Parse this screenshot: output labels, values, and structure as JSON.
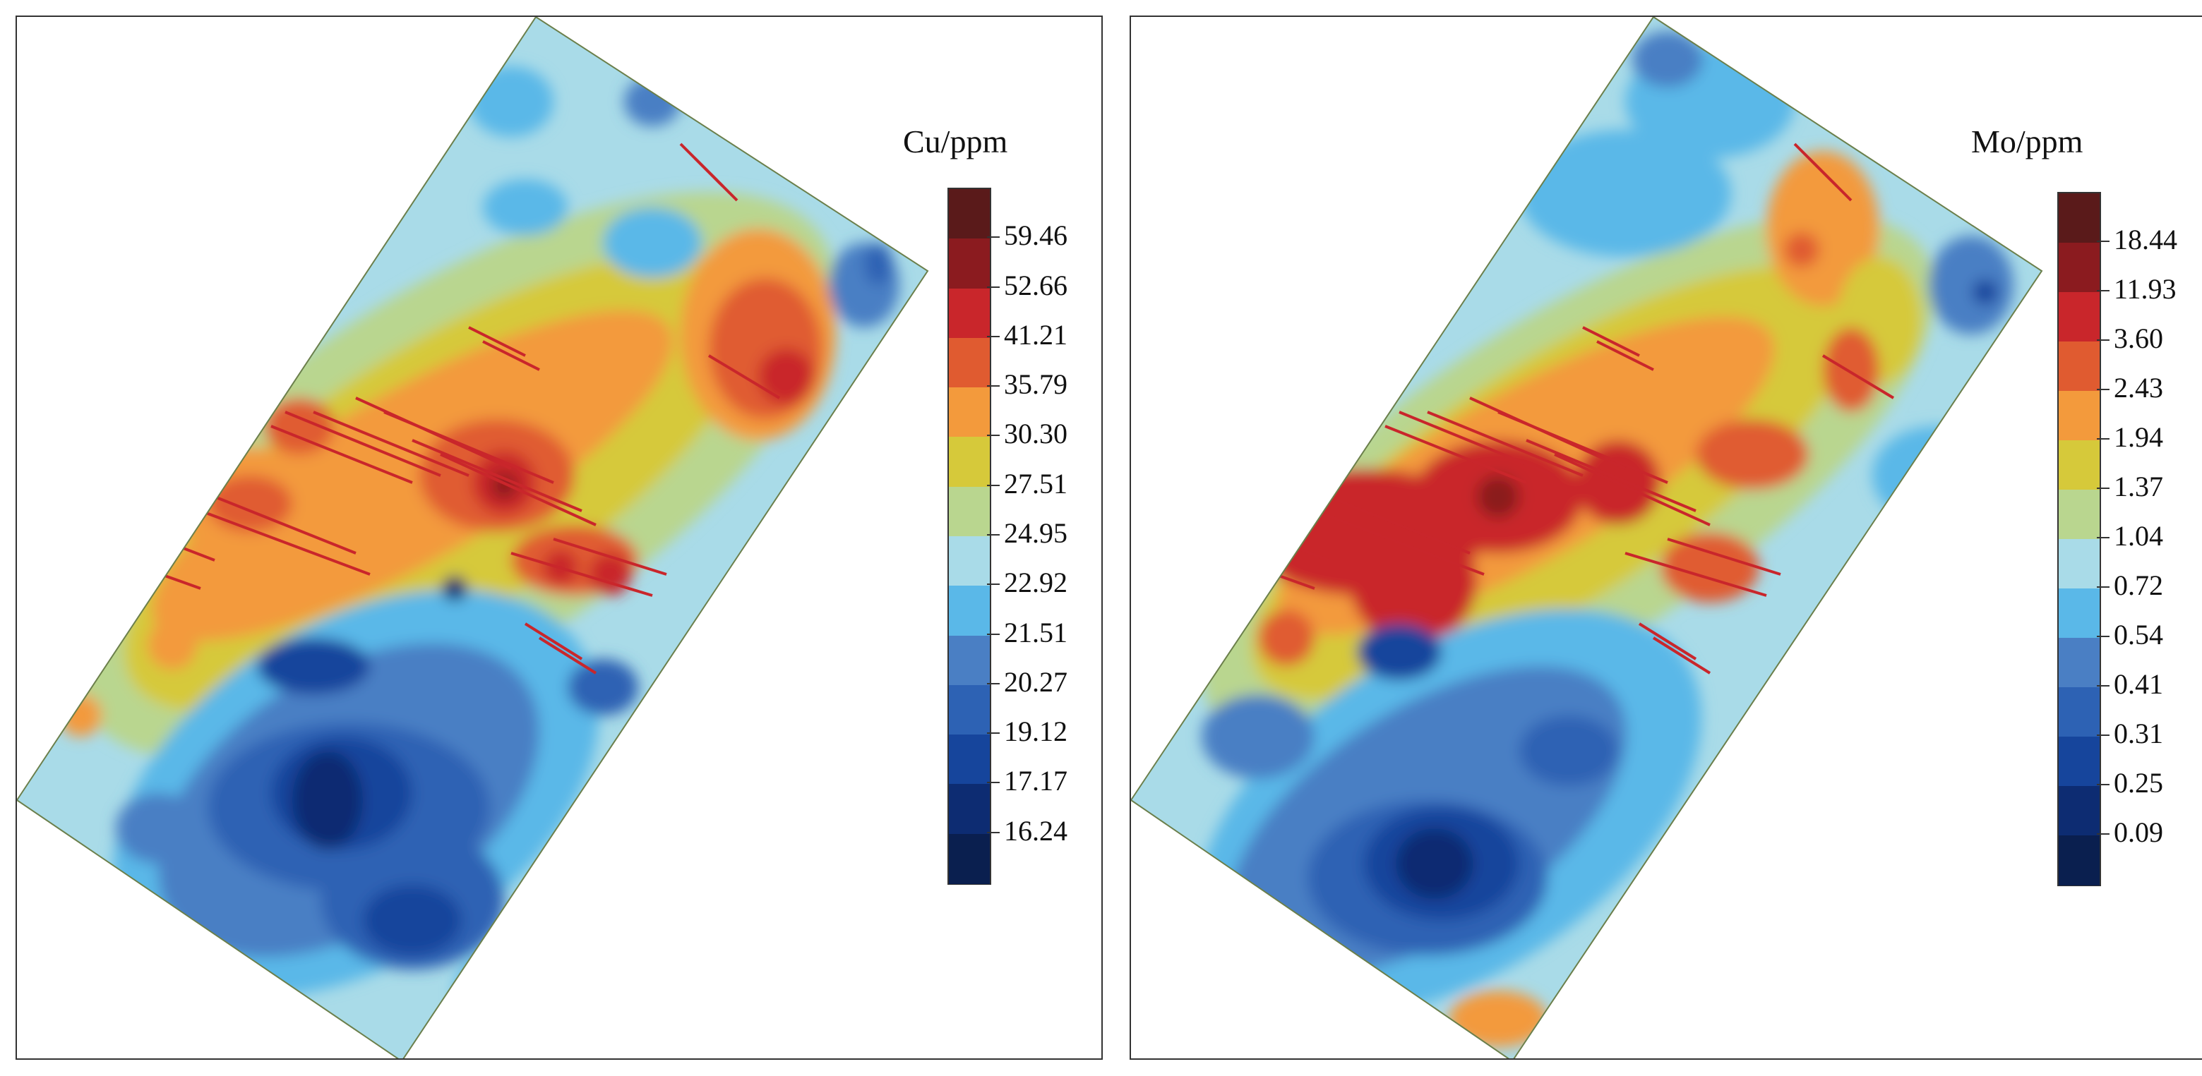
{
  "panels": [
    {
      "id": "cu",
      "legend_title": "Cu/ppm",
      "levels": [
        "59.46",
        "52.66",
        "41.21",
        "35.79",
        "30.30",
        "27.51",
        "24.95",
        "22.92",
        "21.51",
        "20.27",
        "19.12",
        "17.17",
        "16.24"
      ],
      "colors": [
        "#5a1a1a",
        "#8b1b1f",
        "#c9262b",
        "#e05b30",
        "#f39a3c",
        "#d6c93a",
        "#b9d68f",
        "#a9dbe8",
        "#5ab8e8",
        "#4a7fc4",
        "#2d62b4",
        "#16459c",
        "#0d2c72",
        "#0a1f4f"
      ]
    },
    {
      "id": "mo",
      "legend_title": "Mo/ppm",
      "levels": [
        "18.44",
        "11.93",
        "3.60",
        "2.43",
        "1.94",
        "1.37",
        "1.04",
        "0.72",
        "0.54",
        "0.41",
        "0.31",
        "0.25",
        "0.09"
      ],
      "colors": [
        "#5a1a1a",
        "#8b1b1f",
        "#c9262b",
        "#e05b30",
        "#f39a3c",
        "#d6c93a",
        "#b9d68f",
        "#a9dbe8",
        "#5ab8e8",
        "#4a7fc4",
        "#2d62b4",
        "#16459c",
        "#0d2c72",
        "#0a1f4f"
      ]
    }
  ]
}
